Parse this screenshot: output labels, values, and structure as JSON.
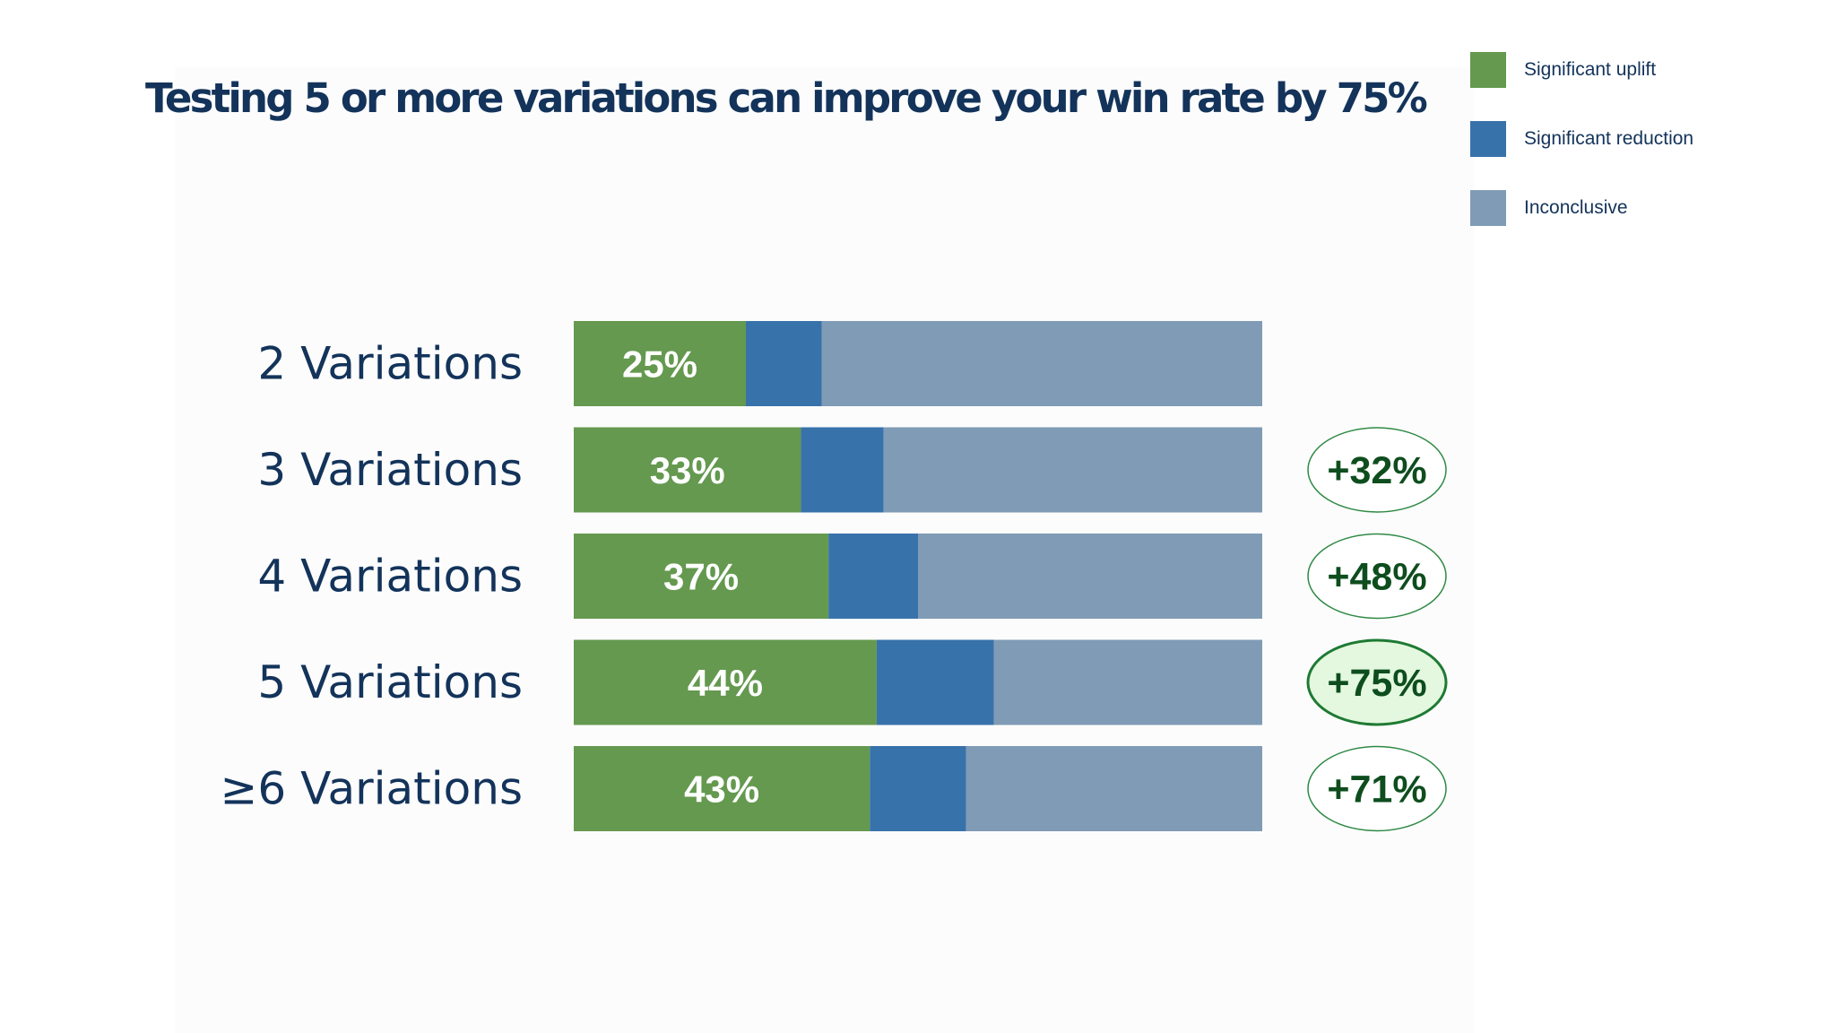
{
  "title": "Testing 5 or more variations can improve your win rate by 75%",
  "colors": {
    "uplift": "#64994f",
    "reduction": "#3872ab",
    "inconclusive": "#809bb5",
    "title": "#13335a",
    "bar_label": "#ffffff",
    "delta_text": "#0e4d1e",
    "delta_border": "#2f8a45",
    "delta_highlight_fill": "#e3f8de",
    "delta_highlight_border": "#1e7a33"
  },
  "legend": [
    {
      "label": "Significant uplift",
      "color": "#64994f"
    },
    {
      "label": "Significant reduction",
      "color": "#3872ab"
    },
    {
      "label": "Inconclusive",
      "color": "#809bb5"
    }
  ],
  "chart_data": {
    "type": "bar",
    "orientation": "horizontal",
    "stacked": true,
    "categories": [
      "2 Variations",
      "3 Variations",
      "4 Variations",
      "5 Variations",
      "≥6 Variations"
    ],
    "series": [
      {
        "name": "Significant uplift",
        "values": [
          25,
          33,
          37,
          44,
          43
        ]
      },
      {
        "name": "Significant reduction",
        "values": [
          11,
          12,
          13,
          17,
          14
        ]
      },
      {
        "name": "Inconclusive",
        "values": [
          64,
          55,
          50,
          39,
          43
        ]
      }
    ],
    "data_labels": [
      "25%",
      "33%",
      "37%",
      "44%",
      "43%"
    ],
    "deltas": [
      null,
      "+32%",
      "+48%",
      "+75%",
      "+71%"
    ],
    "highlight_index": 3,
    "xlim": [
      0,
      100
    ],
    "legend_position": "top-right"
  }
}
